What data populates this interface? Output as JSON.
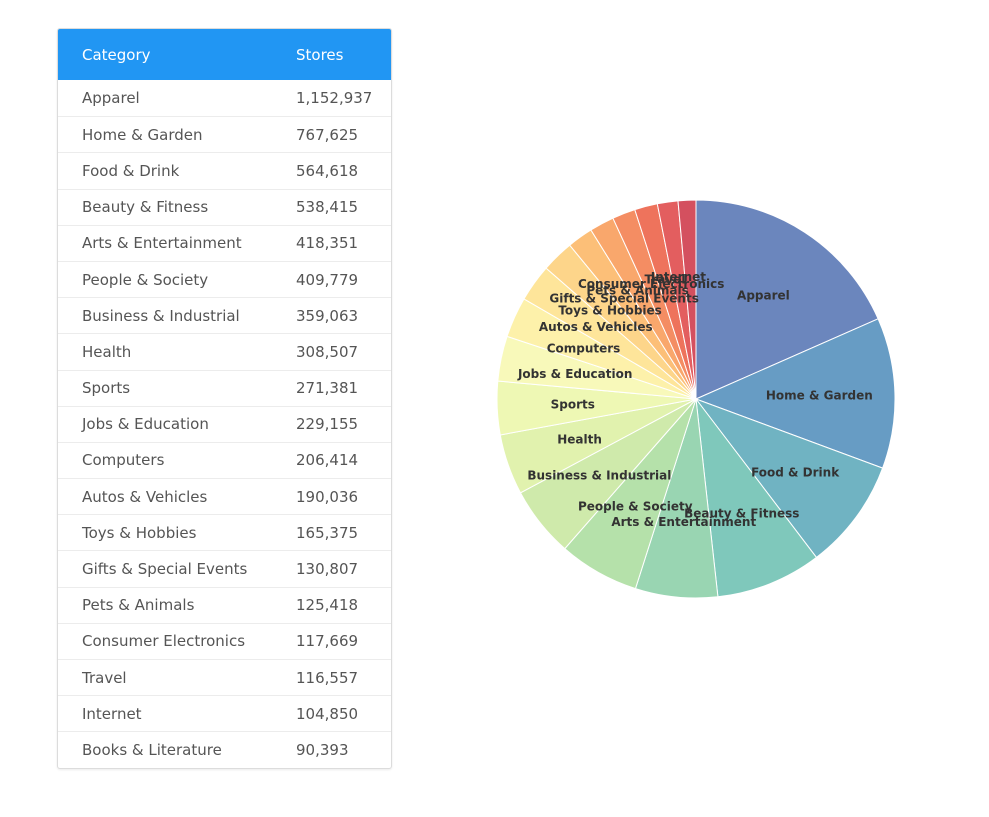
{
  "table": {
    "header_category": "Category",
    "header_stores": "Stores",
    "rows": [
      {
        "category": "Apparel",
        "stores": "1,152,937"
      },
      {
        "category": "Home & Garden",
        "stores": "767,625"
      },
      {
        "category": "Food & Drink",
        "stores": "564,618"
      },
      {
        "category": "Beauty & Fitness",
        "stores": "538,415"
      },
      {
        "category": "Arts & Entertainment",
        "stores": "418,351"
      },
      {
        "category": "People & Society",
        "stores": "409,779"
      },
      {
        "category": "Business & Industrial",
        "stores": "359,063"
      },
      {
        "category": "Health",
        "stores": "308,507"
      },
      {
        "category": "Sports",
        "stores": "271,381"
      },
      {
        "category": "Jobs & Education",
        "stores": "229,155"
      },
      {
        "category": "Computers",
        "stores": "206,414"
      },
      {
        "category": "Autos & Vehicles",
        "stores": "190,036"
      },
      {
        "category": "Toys & Hobbies",
        "stores": "165,375"
      },
      {
        "category": "Gifts & Special Events",
        "stores": "130,807"
      },
      {
        "category": "Pets & Animals",
        "stores": "125,418"
      },
      {
        "category": "Consumer Electronics",
        "stores": "117,669"
      },
      {
        "category": "Travel",
        "stores": "116,557"
      },
      {
        "category": "Internet",
        "stores": "104,850"
      },
      {
        "category": "Books & Literature",
        "stores": "90,393"
      }
    ]
  },
  "chart_data": {
    "type": "pie",
    "categories": [
      "Apparel",
      "Home & Garden",
      "Food & Drink",
      "Beauty & Fitness",
      "Arts & Entertainment",
      "People & Society",
      "Business & Industrial",
      "Health",
      "Sports",
      "Jobs & Education",
      "Computers",
      "Autos & Vehicles",
      "Toys & Hobbies",
      "Gifts & Special Events",
      "Pets & Animals",
      "Consumer Electronics",
      "Travel",
      "Internet",
      "Books & Literature"
    ],
    "values": [
      1152937,
      767625,
      564618,
      538415,
      418351,
      409779,
      359063,
      308507,
      271381,
      229155,
      206414,
      190036,
      165375,
      130807,
      125418,
      117669,
      116557,
      104850,
      90393
    ],
    "colors": [
      "#6b86bd",
      "#679cc4",
      "#70b3c2",
      "#7fc8bb",
      "#99d5b2",
      "#b5e1aa",
      "#cfeaab",
      "#e1f2ae",
      "#eef8b4",
      "#f8f9ba",
      "#fdf1aa",
      "#fee59a",
      "#fdd58a",
      "#fcbf78",
      "#f9a76c",
      "#f48d63",
      "#ee735c",
      "#e35e5f",
      "#d4505f"
    ],
    "labels_shown": [
      "Apparel",
      "Home & Garden",
      "Food & Drink",
      "Beauty & Fitness",
      "Arts & Entertainment",
      "People & Society",
      "Business & Industrial",
      "Health",
      "Sports",
      "Jobs & Education",
      "Computers",
      "Autos & Vehicles",
      "Toys & Hobbies",
      "Gifts & Special Events",
      "Pets & Animals",
      "Consumer Electronics",
      "Travel",
      "Internet"
    ],
    "start_angle": "12 o'clock",
    "direction": "clockwise",
    "legend": "none"
  }
}
